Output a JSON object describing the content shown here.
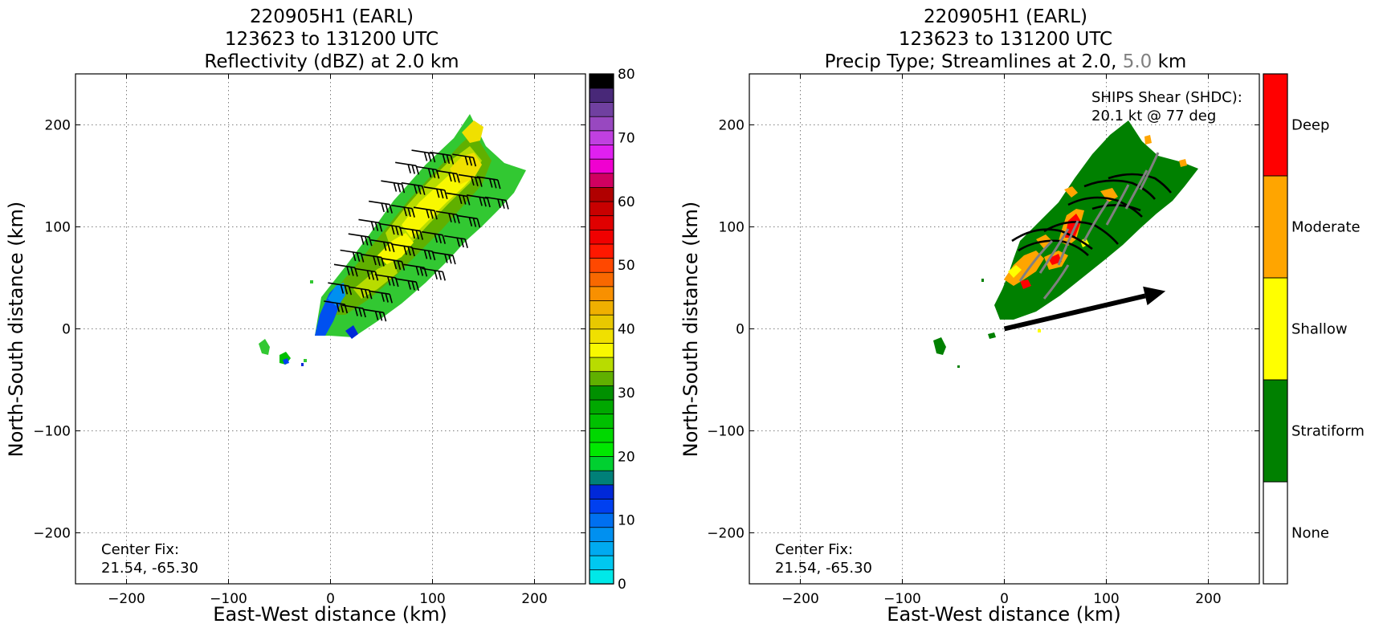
{
  "chart_data": [
    {
      "type": "heatmap",
      "title_lines": [
        "220905H1 (EARL)",
        "123623 to 131200 UTC",
        "Reflectivity (dBZ) at 2.0 km"
      ],
      "xlabel": "East-West distance (km)",
      "ylabel": "North-South distance (km)",
      "xlim": [
        -250,
        250
      ],
      "ylim": [
        -250,
        250
      ],
      "xticks": [
        -200,
        -100,
        0,
        100,
        200
      ],
      "yticks": [
        -200,
        -100,
        0,
        100,
        200
      ],
      "grid": true,
      "annotation_lines": [
        "Center Fix:",
        "21.54, -65.30"
      ],
      "colorbar": {
        "label_ticks": [
          0,
          10,
          20,
          30,
          40,
          50,
          60,
          70,
          80
        ],
        "range": [
          0,
          80
        ],
        "levels": [
          "#00e8e8",
          "#00c8f0",
          "#00aaf0",
          "#0090f0",
          "#0070f0",
          "#0040f0",
          "#0028d8",
          "#008078",
          "#00d030",
          "#00e800",
          "#00d800",
          "#00c000",
          "#00a800",
          "#009000",
          "#60b000",
          "#b8dc00",
          "#f8f800",
          "#f0e000",
          "#e8c800",
          "#f0b000",
          "#f89000",
          "#f86800",
          "#ff4800",
          "#ff1800",
          "#f00000",
          "#e00000",
          "#c80000",
          "#b00000",
          "#d00060",
          "#f000d0",
          "#e020f0",
          "#c040e0",
          "#9848c0",
          "#7040a0",
          "#482878",
          "#000000"
        ]
      },
      "series": [
        {
          "type": "wind_barbs",
          "points": [
            [
              100,
              172
            ],
            [
              118,
              170
            ],
            [
              140,
              168
            ],
            [
              84,
              160
            ],
            [
              104,
              156
            ],
            [
              124,
              152
            ],
            [
              146,
              148
            ],
            [
              164,
              146
            ],
            [
              70,
              142
            ],
            [
              90,
              140
            ],
            [
              112,
              136
            ],
            [
              134,
              130
            ],
            [
              154,
              128
            ],
            [
              172,
              126
            ],
            [
              58,
              122
            ],
            [
              80,
              118
            ],
            [
              102,
              116
            ],
            [
              124,
              112
            ],
            [
              144,
              108
            ],
            [
              48,
              104
            ],
            [
              68,
              100
            ],
            [
              88,
              96
            ],
            [
              110,
              92
            ],
            [
              132,
              88
            ],
            [
              38,
              90
            ],
            [
              60,
              84
            ],
            [
              80,
              80
            ],
            [
              100,
              76
            ],
            [
              120,
              72
            ],
            [
              30,
              74
            ],
            [
              50,
              70
            ],
            [
              70,
              66
            ],
            [
              92,
              60
            ],
            [
              110,
              56
            ],
            [
              24,
              60
            ],
            [
              44,
              56
            ],
            [
              64,
              50
            ],
            [
              84,
              46
            ],
            [
              18,
              42
            ],
            [
              38,
              38
            ],
            [
              58,
              34
            ],
            [
              14,
              24
            ],
            [
              32,
              20
            ],
            [
              52,
              16
            ]
          ]
        }
      ]
    },
    {
      "type": "heatmap",
      "title_lines": [
        "220905H1 (EARL)",
        "123623 to 131200 UTC",
        "Precip Type; Streamlines at 2.0,",
        "5.0",
        "km"
      ],
      "xlabel": "East-West distance (km)",
      "ylabel": "North-South distance (km)",
      "xlim": [
        -250,
        250
      ],
      "ylim": [
        -250,
        250
      ],
      "xticks": [
        -200,
        -100,
        0,
        100,
        200
      ],
      "yticks": [
        -200,
        -100,
        0,
        100,
        200
      ],
      "grid": true,
      "annotation_lines": [
        "Center Fix:",
        "21.54, -65.30"
      ],
      "shear_lines": [
        "SHIPS Shear (SHDC):",
        "20.1 kt @ 77 deg"
      ],
      "shear_vector": {
        "from": [
          0,
          0
        ],
        "to": [
          158,
          37
        ]
      },
      "colorbar": {
        "categories": [
          "None",
          "Stratiform",
          "Shallow",
          "Moderate",
          "Deep"
        ],
        "colors": [
          "#ffffff",
          "#008000",
          "#ffff00",
          "#ffa500",
          "#ff0000"
        ]
      },
      "colors": {
        "streamline_2km": "#000000",
        "streamline_5km": "#808080",
        "title_5km": "#808080"
      }
    }
  ]
}
